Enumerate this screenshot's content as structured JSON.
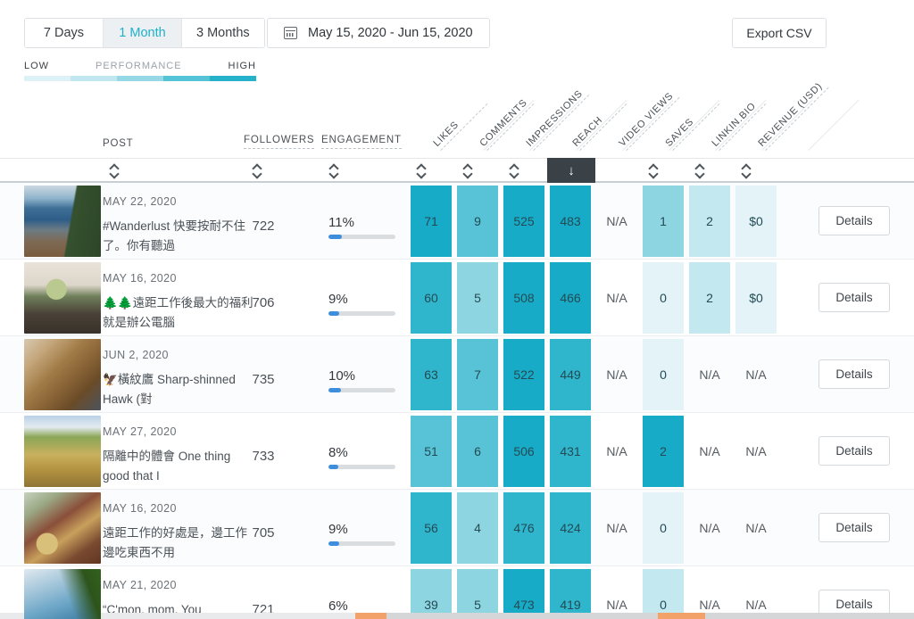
{
  "toolbar": {
    "tabs": [
      {
        "label": "7 Days",
        "active": false
      },
      {
        "label": "1 Month",
        "active": true
      },
      {
        "label": "3 Months",
        "active": false
      }
    ],
    "date_range": "May 15, 2020 - Jun 15, 2020",
    "export_label": "Export CSV"
  },
  "legend": {
    "low_label": "LOW",
    "title": "PERFORMANCE",
    "high_label": "HIGH",
    "colors": [
      "#ddf1f6",
      "#c0e7ef",
      "#96d8e5",
      "#54c3d6",
      "#26b1cb"
    ]
  },
  "table": {
    "post_label": "POST",
    "followers_label": "FOLLOWERS",
    "engagement_label": "ENGAGEMENT",
    "metric_columns": [
      {
        "label": "LIKES",
        "sortable": true,
        "sorted": false
      },
      {
        "label": "COMMENTS",
        "sortable": true,
        "sorted": false
      },
      {
        "label": "IMPRESSIONS",
        "sortable": true,
        "sorted": false
      },
      {
        "label": "REACH",
        "sortable": true,
        "sorted": true,
        "sort_direction": "descending",
        "sort_glyph": "↓"
      },
      {
        "label": "VIDEO VIEWS",
        "sortable": false,
        "sorted": false
      },
      {
        "label": "SAVES",
        "sortable": true,
        "sorted": false
      },
      {
        "label": "LINKIN.BIO",
        "sortable": true,
        "sorted": false
      },
      {
        "label": "REVENUE (USD)",
        "sortable": true,
        "sorted": false
      }
    ],
    "details_label": "Details"
  },
  "rows": [
    {
      "date": "MAY 22, 2020",
      "caption": "#Wanderlust 快要按耐不住了。你有聽過",
      "thumb": "crater-lake-photo",
      "followers": "722",
      "engagement_label": "11%",
      "engagement_pct": 11,
      "metrics": [
        {
          "value": "71",
          "level": 5
        },
        {
          "value": "9",
          "level": 3
        },
        {
          "value": "525",
          "level": 5
        },
        {
          "value": "483",
          "level": 5
        },
        {
          "value": "N/A",
          "level": -1
        },
        {
          "value": "1",
          "level": 2
        },
        {
          "value": "2",
          "level": 1
        },
        {
          "value": "$0",
          "level": 0
        }
      ]
    },
    {
      "date": "MAY 16, 2020",
      "caption": "🌲🌲遠距工作後最大的福利就是辦公電腦",
      "thumb": "tent-laptop-photo",
      "followers": "706",
      "engagement_label": "9%",
      "engagement_pct": 9,
      "metrics": [
        {
          "value": "60",
          "level": 4
        },
        {
          "value": "5",
          "level": 2
        },
        {
          "value": "508",
          "level": 5
        },
        {
          "value": "466",
          "level": 5
        },
        {
          "value": "N/A",
          "level": -1
        },
        {
          "value": "0",
          "level": 0
        },
        {
          "value": "2",
          "level": 1
        },
        {
          "value": "$0",
          "level": 0
        }
      ]
    },
    {
      "date": "JUN 2, 2020",
      "caption": "🦅橫紋鷹 Sharp-shinned Hawk (對",
      "thumb": "hawk-photo",
      "followers": "735",
      "engagement_label": "10%",
      "engagement_pct": 10,
      "metrics": [
        {
          "value": "63",
          "level": 4
        },
        {
          "value": "7",
          "level": 3
        },
        {
          "value": "522",
          "level": 5
        },
        {
          "value": "449",
          "level": 4
        },
        {
          "value": "N/A",
          "level": -1
        },
        {
          "value": "0",
          "level": 0
        },
        {
          "value": "N/A",
          "level": -1
        },
        {
          "value": "N/A",
          "level": -1
        }
      ]
    },
    {
      "date": "MAY 27, 2020",
      "caption": "隔離中的體會 One thing good that I",
      "thumb": "horseback-field-photo",
      "followers": "733",
      "engagement_label": "8%",
      "engagement_pct": 8,
      "metrics": [
        {
          "value": "51",
          "level": 3
        },
        {
          "value": "6",
          "level": 3
        },
        {
          "value": "506",
          "level": 5
        },
        {
          "value": "431",
          "level": 4
        },
        {
          "value": "N/A",
          "level": -1
        },
        {
          "value": "2",
          "level": 5
        },
        {
          "value": "N/A",
          "level": -1
        },
        {
          "value": "N/A",
          "level": -1
        }
      ]
    },
    {
      "date": "MAY 16, 2020",
      "caption": "遠距工作的好處是，邊工作邊吃東西不用",
      "thumb": "food-table-photo",
      "followers": "705",
      "engagement_label": "9%",
      "engagement_pct": 9,
      "metrics": [
        {
          "value": "56",
          "level": 4
        },
        {
          "value": "4",
          "level": 2
        },
        {
          "value": "476",
          "level": 4
        },
        {
          "value": "424",
          "level": 4
        },
        {
          "value": "N/A",
          "level": -1
        },
        {
          "value": "0",
          "level": 0
        },
        {
          "value": "N/A",
          "level": -1
        },
        {
          "value": "N/A",
          "level": -1
        }
      ]
    },
    {
      "date": "MAY 21, 2020",
      "caption": "“C'mon, mom. You",
      "thumb": "lake-swimmers-photo",
      "followers": "721",
      "engagement_label": "6%",
      "engagement_pct": 6,
      "metrics": [
        {
          "value": "39",
          "level": 2
        },
        {
          "value": "5",
          "level": 2
        },
        {
          "value": "473",
          "level": 5
        },
        {
          "value": "419",
          "level": 4
        },
        {
          "value": "N/A",
          "level": -1
        },
        {
          "value": "0",
          "level": 1
        },
        {
          "value": "N/A",
          "level": -1
        },
        {
          "value": "N/A",
          "level": -1
        }
      ]
    }
  ],
  "colors": {
    "accent_teal": "#1fb0ca",
    "heatmap": [
      "#e3f3f8",
      "#c3e8f0",
      "#8ed5e2",
      "#58c3d6",
      "#2fb6cd",
      "#18abc7"
    ],
    "sort_active_bg": "#3a4147",
    "engagement_fill": "#3d8edd",
    "scroll_track_light": "#e9eaeb",
    "scroll_track_dark": "#d4d6d7",
    "scroll_highlight": "#f2a269"
  }
}
